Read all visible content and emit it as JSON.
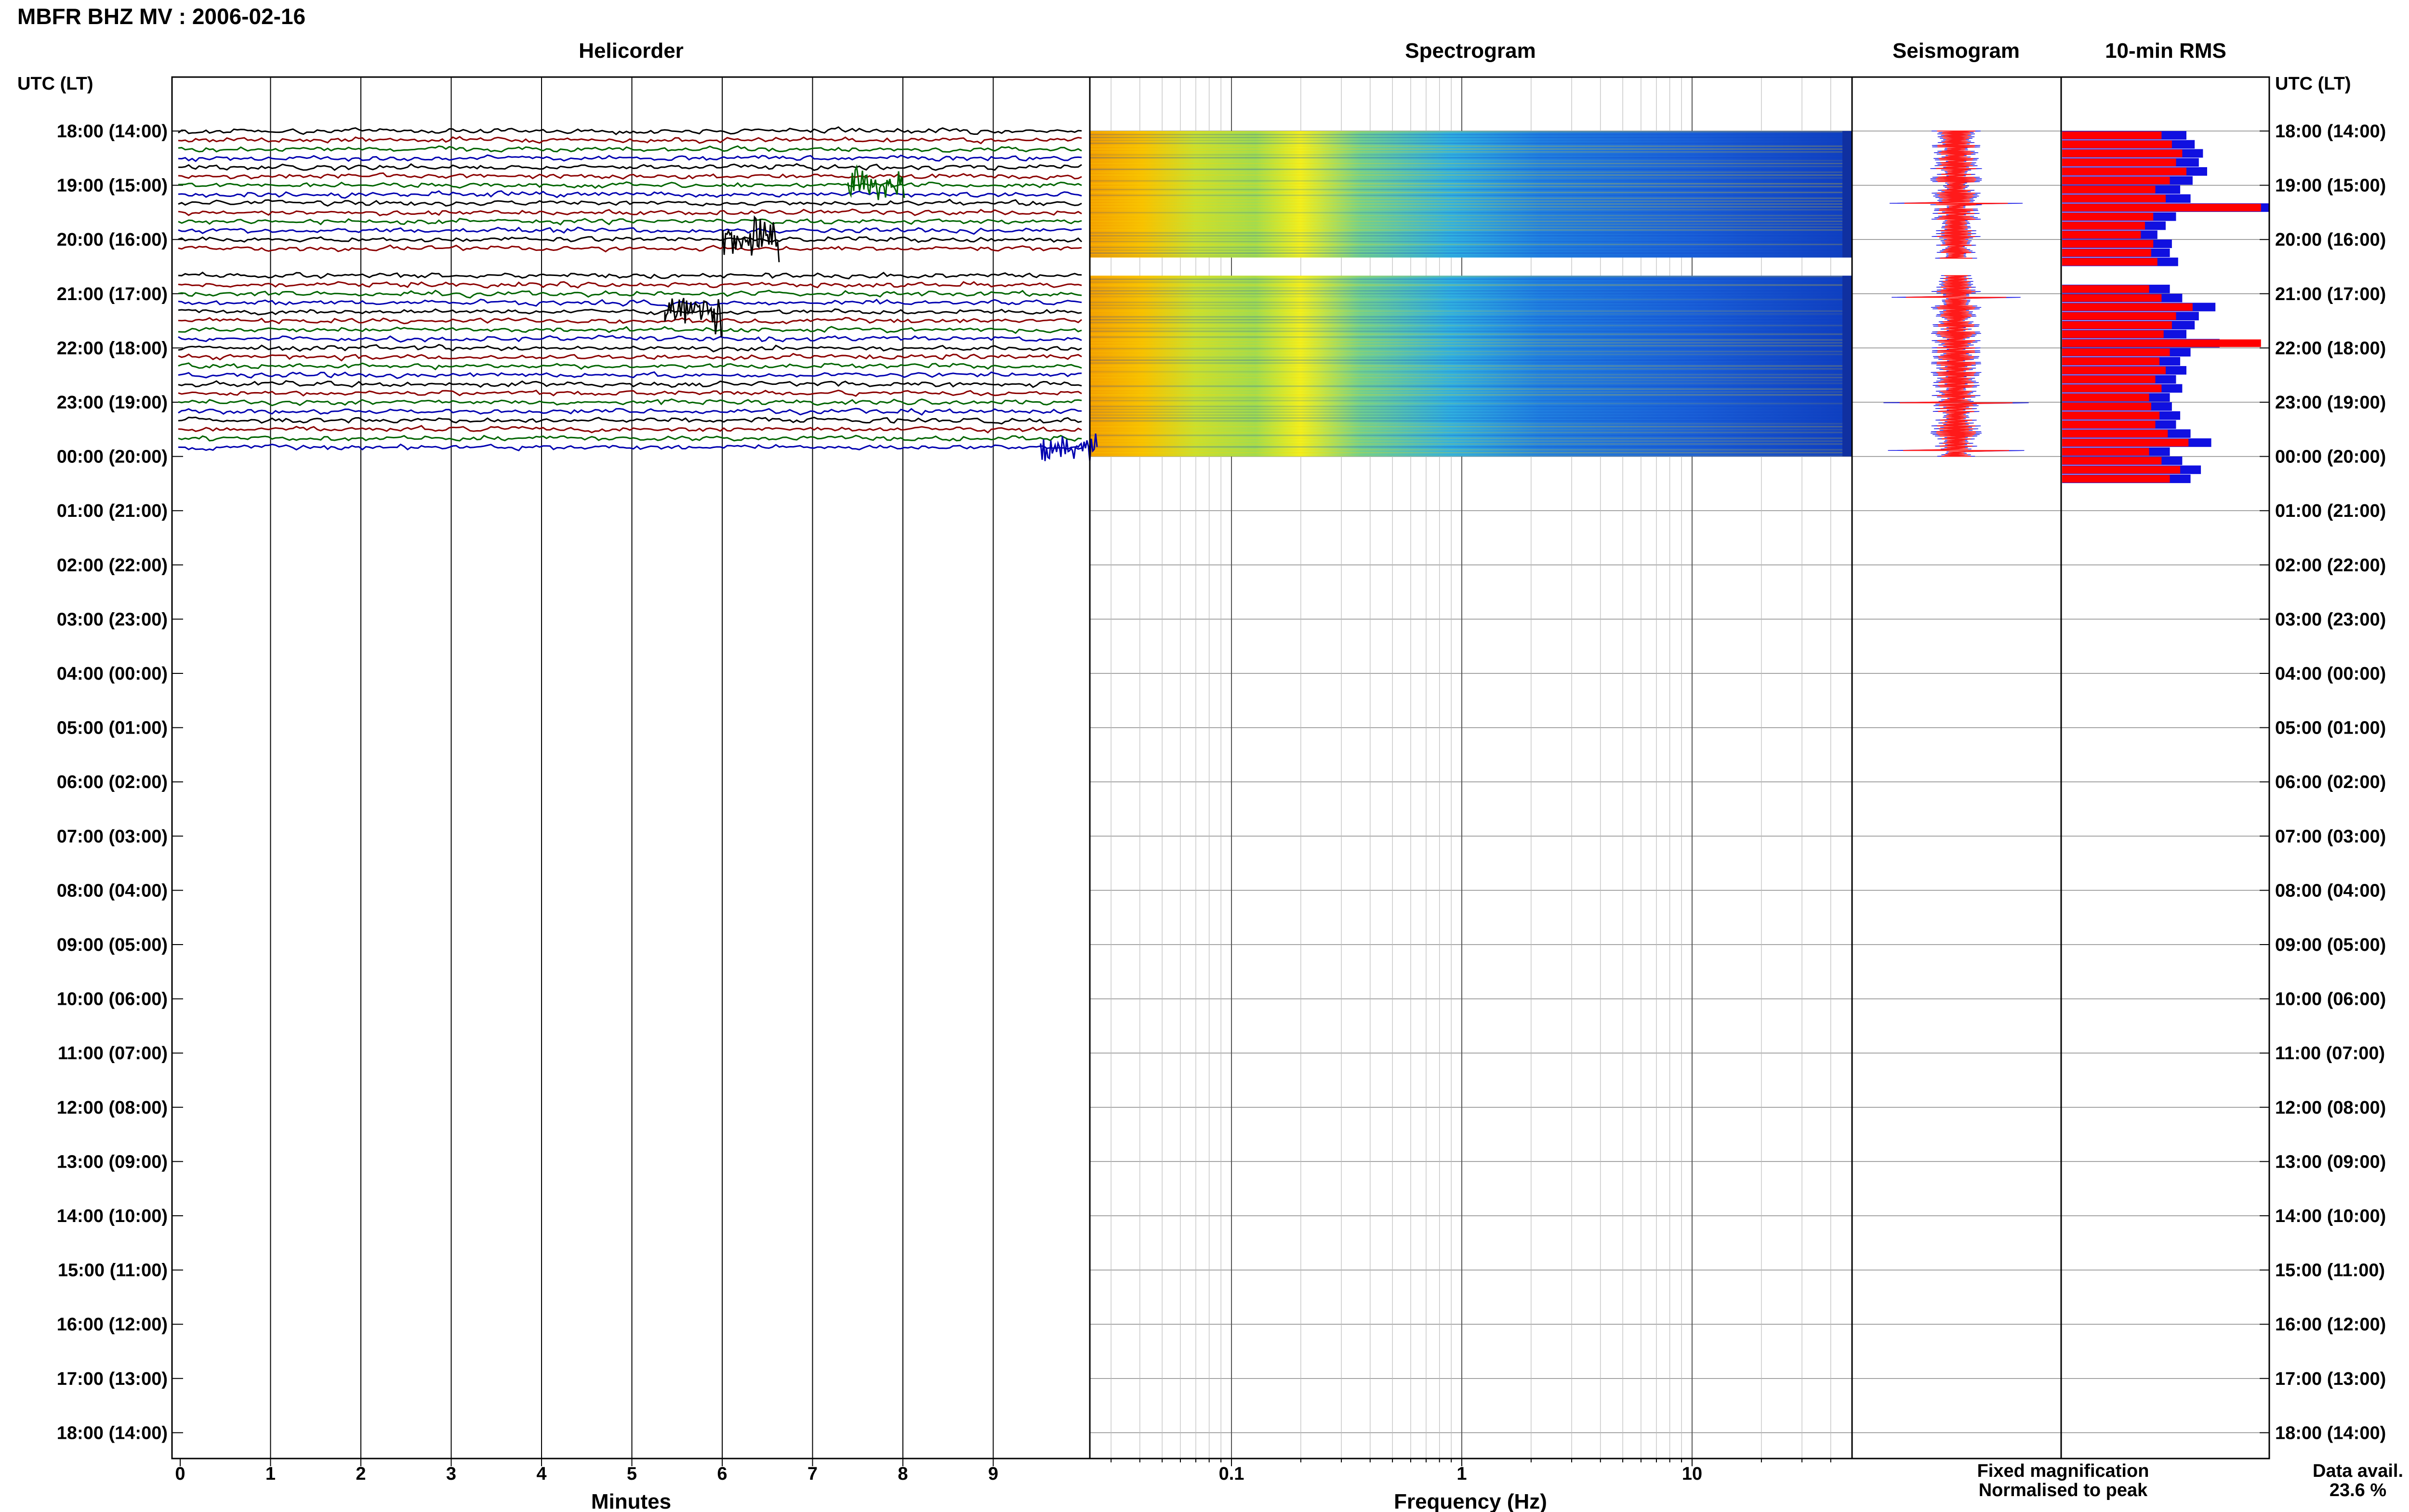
{
  "page_title": "MBFR BHZ MV : 2006-02-16",
  "panels": {
    "helicorder": "Helicorder",
    "spectrogram": "Spectrogram",
    "seismogram": "Seismogram",
    "rms": "10-min RMS"
  },
  "axis_header_left": "UTC (LT)",
  "axis_header_right": "UTC (LT)",
  "hour_labels": [
    "18:00 (14:00)",
    "19:00 (15:00)",
    "20:00 (16:00)",
    "21:00 (17:00)",
    "22:00 (18:00)",
    "23:00 (19:00)",
    "00:00 (20:00)",
    "01:00 (21:00)",
    "02:00 (22:00)",
    "03:00 (23:00)",
    "04:00 (00:00)",
    "05:00 (01:00)",
    "06:00 (02:00)",
    "07:00 (03:00)",
    "08:00 (04:00)",
    "09:00 (05:00)",
    "10:00 (06:00)",
    "11:00 (07:00)",
    "12:00 (08:00)",
    "13:00 (09:00)",
    "14:00 (10:00)",
    "15:00 (11:00)",
    "16:00 (12:00)",
    "17:00 (13:00)",
    "18:00 (14:00)"
  ],
  "minutes_axis": {
    "label": "Minutes",
    "ticks": [
      "0",
      "1",
      "2",
      "3",
      "4",
      "5",
      "6",
      "7",
      "8",
      "9"
    ]
  },
  "frequency_axis": {
    "label": "Frequency (Hz)",
    "ticks": [
      "0.1",
      "1",
      "10"
    ],
    "scale": "log"
  },
  "legend": {
    "fixed": "Fixed magnification",
    "normalised": "Normalised to peak",
    "fixed_color": "#1f1fe6",
    "normalised_color": "#ff1a1a"
  },
  "data_avail": {
    "label": "Data avail.",
    "value": "23.6 %"
  },
  "colors": {
    "trace_colors": [
      "#000000",
      "#8b0000",
      "#006400",
      "#0000b0"
    ],
    "rms_fixed": "#1010e0",
    "rms_normalised": "#ff0000"
  },
  "chart_data": {
    "type": "bar",
    "title": "10-min RMS",
    "data_gap": "20:20–20:40 UTC",
    "series": [
      {
        "name": "Fixed magnification",
        "values": [
          0.6,
          0.64,
          0.68,
          0.66,
          0.7,
          0.63,
          0.57,
          0.62,
          1.0,
          0.55,
          0.5,
          0.46,
          0.53,
          0.52,
          0.56,
          null,
          null,
          0.52,
          0.58,
          0.74,
          0.66,
          0.64,
          0.6,
          0.76,
          0.62,
          0.57,
          0.6,
          0.55,
          0.58,
          0.52,
          0.53,
          0.57,
          0.55,
          0.62,
          0.72,
          0.52,
          0.58,
          0.67,
          0.62
        ]
      },
      {
        "name": "Normalised to peak",
        "values": [
          0.48,
          0.53,
          0.58,
          0.55,
          0.6,
          0.52,
          0.45,
          0.5,
          0.96,
          0.44,
          0.4,
          0.38,
          0.44,
          0.43,
          0.46,
          null,
          null,
          0.42,
          0.48,
          0.63,
          0.55,
          0.53,
          0.49,
          0.96,
          0.52,
          0.47,
          0.5,
          0.45,
          0.48,
          0.42,
          0.43,
          0.47,
          0.45,
          0.51,
          0.61,
          0.42,
          0.48,
          0.57,
          0.52
        ]
      }
    ]
  }
}
